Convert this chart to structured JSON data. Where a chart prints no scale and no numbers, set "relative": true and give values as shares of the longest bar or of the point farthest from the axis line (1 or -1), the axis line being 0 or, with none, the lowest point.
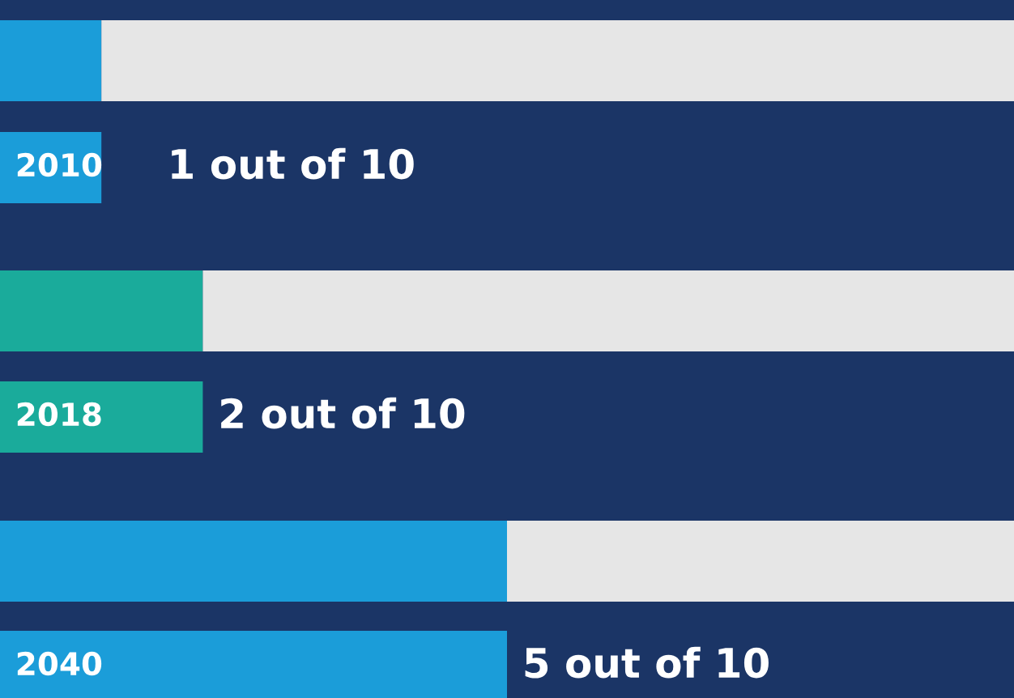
{
  "chart_data": [
    {
      "type": "bar",
      "orientation": "horizontal",
      "stacked": true,
      "relative": true,
      "categories": [
        null,
        null,
        null
      ],
      "series": [
        {
          "colors": [
            "#1b9dd9",
            "#1aab9b",
            "#1b9dd9"
          ],
          "values": [
            0.1,
            0.2,
            0.5
          ]
        },
        {
          "color": "#e6e6e6",
          "values": [
            0.9,
            0.8,
            0.5
          ]
        }
      ]
    },
    {
      "type": "bar",
      "orientation": "horizontal",
      "categories": [
        "2010",
        "2018",
        "2040"
      ],
      "values": [
        1,
        2,
        5
      ],
      "colors": [
        "#1b9dd9",
        "#1aab9b",
        "#1b9dd9"
      ],
      "xlim": [
        0,
        10
      ],
      "value_labels": [
        "1 out of 10",
        "2 out of 10",
        "5 out of 10"
      ]
    }
  ]
}
